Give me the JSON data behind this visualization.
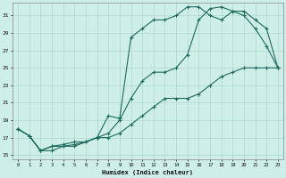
{
  "xlabel": "Humidex (Indice chaleur)",
  "bg_color": "#ceeee8",
  "grid_color": "#aed8d2",
  "line_color": "#1e6b5e",
  "xlim": [
    -0.5,
    23.5
  ],
  "ylim": [
    14.5,
    32.5
  ],
  "yticks": [
    15,
    17,
    19,
    21,
    23,
    25,
    27,
    29,
    31
  ],
  "xticks": [
    0,
    1,
    2,
    3,
    4,
    5,
    6,
    7,
    8,
    9,
    10,
    11,
    12,
    13,
    14,
    15,
    16,
    17,
    18,
    19,
    20,
    21,
    22,
    23
  ],
  "line1_x": [
    0,
    1,
    2,
    3,
    4,
    5,
    6,
    7,
    8,
    9,
    10,
    11,
    12,
    13,
    14,
    15,
    16,
    17,
    18,
    19,
    20,
    21,
    22,
    23
  ],
  "line1_y": [
    18.0,
    17.2,
    15.5,
    16.0,
    16.0,
    16.2,
    16.5,
    17.0,
    17.5,
    19.0,
    21.5,
    23.5,
    24.5,
    24.5,
    25.0,
    26.5,
    30.5,
    31.8,
    32.0,
    31.5,
    31.5,
    30.5,
    29.5,
    25.0
  ],
  "line2_x": [
    0,
    1,
    2,
    3,
    4,
    5,
    6,
    7,
    8,
    9,
    10,
    11,
    12,
    13,
    14,
    15,
    16,
    17,
    18,
    19,
    20,
    21,
    22,
    23
  ],
  "line2_y": [
    18.0,
    17.2,
    15.5,
    15.5,
    16.0,
    16.0,
    16.5,
    17.0,
    19.5,
    19.2,
    28.5,
    29.5,
    30.5,
    30.5,
    31.0,
    32.0,
    32.0,
    31.0,
    30.5,
    31.5,
    31.0,
    29.5,
    27.5,
    25.0
  ],
  "line3_x": [
    0,
    1,
    2,
    3,
    4,
    5,
    6,
    7,
    8,
    9,
    10,
    11,
    12,
    13,
    14,
    15,
    16,
    17,
    18,
    19,
    20,
    21,
    22,
    23
  ],
  "line3_y": [
    18.0,
    17.2,
    15.5,
    16.0,
    16.2,
    16.5,
    16.5,
    17.0,
    17.0,
    17.5,
    18.5,
    19.5,
    20.5,
    21.5,
    21.5,
    21.5,
    22.0,
    23.0,
    24.0,
    24.5,
    25.0,
    25.0,
    25.0,
    25.0
  ]
}
